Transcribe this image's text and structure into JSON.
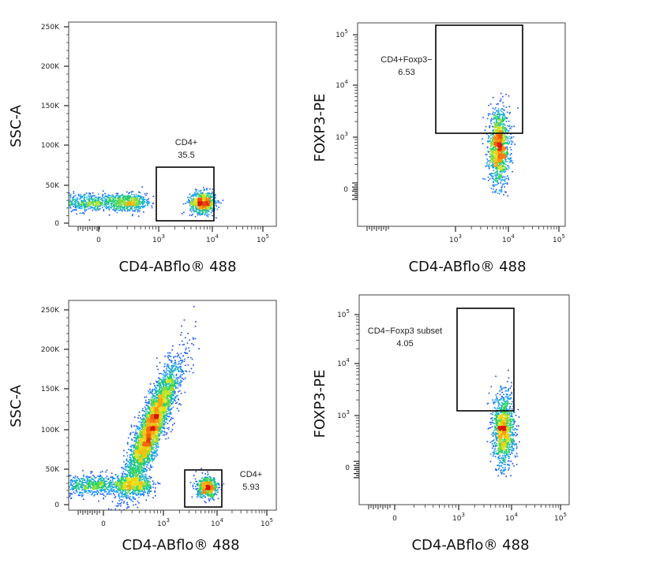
{
  "chart_data": [
    {
      "type": "scatter",
      "id": "tl",
      "xlabel": "CD4-ABflo® 488",
      "ylabel": "SSC-A",
      "x_ticks": [
        "0",
        "10^3",
        "10^4",
        "10^5"
      ],
      "y_ticks": [
        "0",
        "50K",
        "100K",
        "150K",
        "200K",
        "250K"
      ],
      "gate": {
        "name": "CD4+",
        "value": "35.5"
      },
      "populations": [
        {
          "name": "",
          "x_center": 120,
          "y_center": 28000,
          "spread_x": 0.55,
          "spread_y": 6000,
          "count": 1100
        },
        {
          "name": "",
          "x_center": 6500,
          "y_center": 28000,
          "spread_x": 0.12,
          "spread_y": 7000,
          "count": 700
        }
      ]
    },
    {
      "type": "scatter",
      "id": "tr",
      "xlabel": "CD4-ABflo® 488",
      "ylabel": "FOXP3-PE",
      "x_ticks": [
        "10^3",
        "10^4",
        "10^5"
      ],
      "y_ticks": [
        "0",
        "10^3",
        "10^4",
        "10^5"
      ],
      "gate": {
        "name": "CD4+Foxp3−",
        "value": "6.53"
      },
      "populations": [
        {
          "name": "",
          "x_center": 6500,
          "y_center": 650,
          "spread_x": 0.1,
          "spread_y": 0.35,
          "count": 1300
        }
      ]
    },
    {
      "type": "scatter",
      "id": "bl",
      "xlabel": "CD4-ABflo® 488",
      "ylabel": "SSC-A",
      "x_ticks": [
        "0",
        "10^3",
        "10^4",
        "10^5"
      ],
      "y_ticks": [
        "0",
        "50K",
        "100K",
        "150K",
        "200K",
        "250K"
      ],
      "gate": {
        "name": "CD4+",
        "value": "5.93"
      },
      "populations": [
        {
          "name": "",
          "x_center": 120,
          "y_center": 28000,
          "spread_x": 0.55,
          "spread_y": 7000,
          "count": 1300
        },
        {
          "name": "",
          "x_center": 600,
          "y_center": 110000,
          "spread_x": 0.2,
          "spread_y": 45000,
          "count": 3800
        },
        {
          "name": "",
          "x_center": 6500,
          "y_center": 25000,
          "spread_x": 0.1,
          "spread_y": 7000,
          "count": 600
        }
      ]
    },
    {
      "type": "scatter",
      "id": "br",
      "xlabel": "CD4-ABflo® 488",
      "ylabel": "FOXP3-PE",
      "x_ticks": [
        "0",
        "10^3",
        "10^4",
        "10^5"
      ],
      "y_ticks": [
        "0",
        "10^3",
        "10^4",
        "10^5"
      ],
      "gate": {
        "name": "CD4−Foxp3 subset",
        "value": "4.05"
      },
      "populations": [
        {
          "name": "",
          "x_center": 7000,
          "y_center": 550,
          "spread_x": 0.1,
          "spread_y": 0.35,
          "count": 1200
        }
      ]
    }
  ]
}
